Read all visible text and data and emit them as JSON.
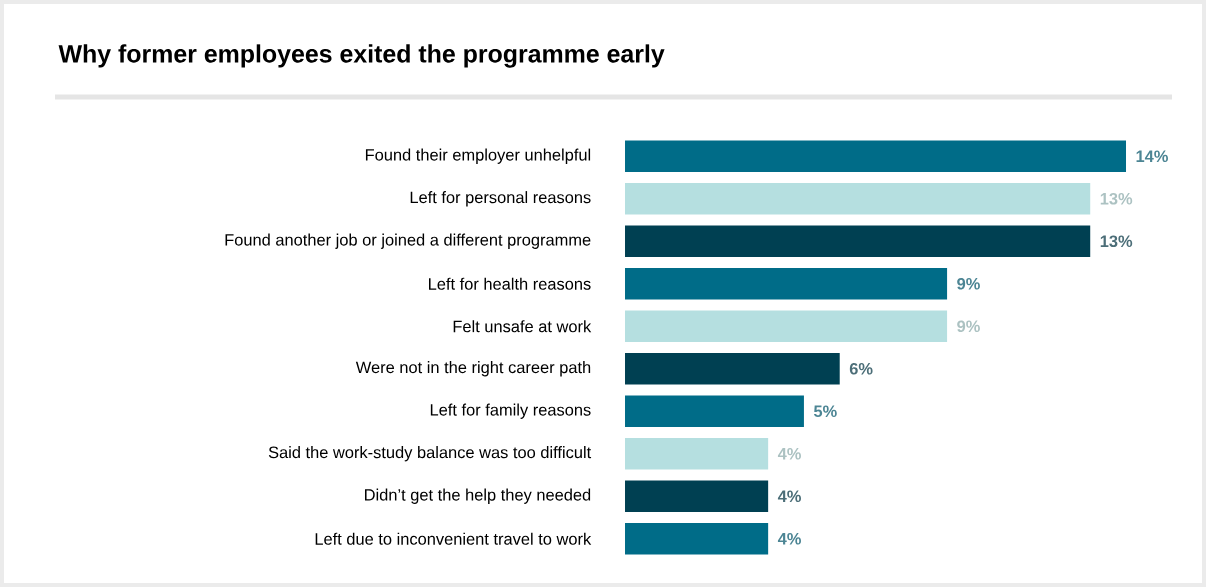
{
  "chart_data": {
    "type": "bar",
    "orientation": "horizontal",
    "title": "Why former employees exited the programme early",
    "categories": [
      "Found their employer unhelpful",
      "Left for personal reasons",
      "Found another job or joined a different programme",
      "Left for health reasons",
      "Felt unsafe at work",
      "Were not in the right career path",
      "Left for family reasons",
      "Said the work-study balance was too difficult",
      "Didn’t get the help they needed",
      "Left due to inconvenient travel to work"
    ],
    "values": [
      14,
      13,
      13,
      9,
      9,
      6,
      5,
      4,
      4,
      4
    ],
    "value_labels": [
      "14%",
      "13%",
      "13%",
      "9%",
      "9%",
      "6%",
      "5%",
      "4%",
      "4%",
      "4%"
    ],
    "colors": [
      "#006c88",
      "#b5dfe0",
      "#004052",
      "#006c88",
      "#b5dfe0",
      "#004052",
      "#006c88",
      "#b5dfe0",
      "#004052",
      "#006c88"
    ]
  }
}
